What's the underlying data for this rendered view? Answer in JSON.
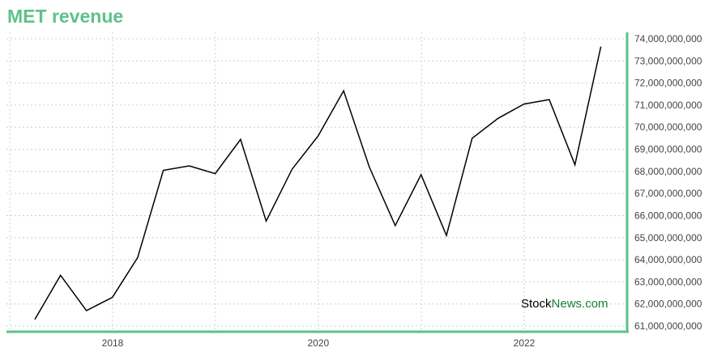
{
  "chart_data": {
    "type": "line",
    "title": "MET revenue",
    "xlabel": "",
    "ylabel": "",
    "x": [
      "2017-03-31",
      "2017-06-30",
      "2017-09-30",
      "2017-12-31",
      "2018-03-31",
      "2018-06-30",
      "2018-09-30",
      "2018-12-31",
      "2019-03-31",
      "2019-06-30",
      "2019-09-30",
      "2019-12-31",
      "2020-03-31",
      "2020-06-30",
      "2020-09-30",
      "2020-12-31",
      "2021-03-31",
      "2021-06-30",
      "2021-09-30",
      "2021-12-31",
      "2022-03-31",
      "2022-06-30",
      "2022-09-30"
    ],
    "series": [
      {
        "values": [
          61300000000,
          63300000000,
          61700000000,
          62300000000,
          64100000000,
          68050000000,
          68250000000,
          67900000000,
          69450000000,
          65750000000,
          68100000000,
          69600000000,
          71650000000,
          68200000000,
          65550000000,
          67850000000,
          65100000000,
          69500000000,
          70400000000,
          71050000000,
          71250000000,
          68300000000,
          73650000000
        ]
      }
    ],
    "x_ticks": [
      "2018",
      "2020",
      "2022"
    ],
    "y_ticks": [
      "61,000,000,000",
      "62,000,000,000",
      "63,000,000,000",
      "64,000,000,000",
      "65,000,000,000",
      "66,000,000,000",
      "67,000,000,000",
      "68,000,000,000",
      "69,000,000,000",
      "70,000,000,000",
      "71,000,000,000",
      "72,000,000,000",
      "73,000,000,000",
      "74,000,000,000"
    ],
    "ylim": [
      61000000000,
      74000000000
    ],
    "grid": true,
    "y_axis_position": "right",
    "line_color": "#000000",
    "accent_color": "#5ec18a"
  },
  "watermark": {
    "part1": "Stock",
    "part2": "News.com"
  }
}
